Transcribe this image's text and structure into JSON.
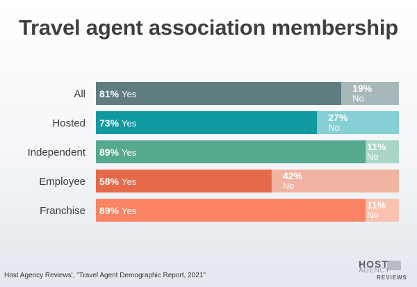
{
  "title": "Travel agent association membership",
  "source": "Host Agency Reviews', \"Travel Agent Demographic Report, 2021\"",
  "logo": {
    "line1": "HOST",
    "line2": "AGENCY",
    "line3": "REVIEWS"
  },
  "chart_data": {
    "type": "bar",
    "orientation": "horizontal",
    "stacked": true,
    "categories": [
      "All",
      "Hosted",
      "Independent",
      "Employee",
      "Franchise"
    ],
    "series": [
      {
        "name": "Yes",
        "values": [
          81,
          73,
          89,
          58,
          89
        ]
      },
      {
        "name": "No",
        "values": [
          19,
          27,
          11,
          42,
          11
        ]
      }
    ],
    "value_suffix": "%",
    "xlim": [
      0,
      100
    ],
    "grid": false,
    "colors": {
      "yes": [
        "#5f7c80",
        "#1199a2",
        "#55a98e",
        "#e6694a",
        "#fa8464"
      ],
      "no": [
        "#a7b7ba",
        "#86cfd4",
        "#a9d5c6",
        "#f1b3a2",
        "#fac1b0"
      ]
    }
  }
}
